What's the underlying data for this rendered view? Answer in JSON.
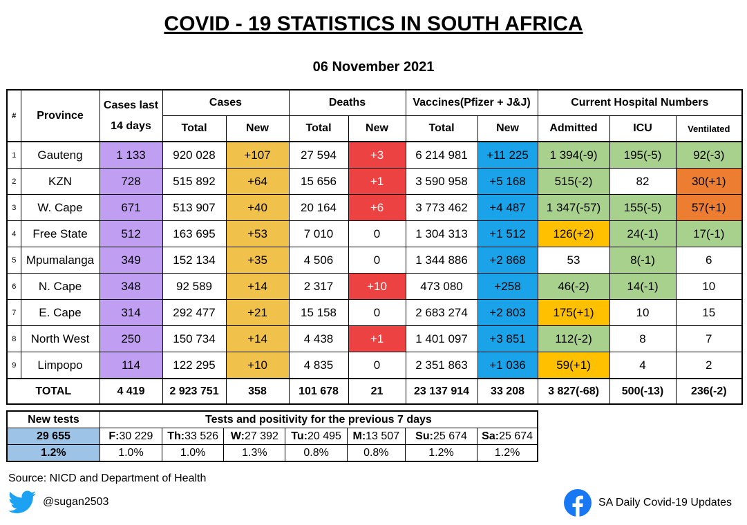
{
  "title": "COVID - 19 STATISTICS IN SOUTH AFRICA",
  "date": "06 November 2021",
  "headers": {
    "num": "#",
    "province": "Province",
    "cases14_line1": "Cases last",
    "cases14_line2": "14 days",
    "cases": "Cases",
    "deaths": "Deaths",
    "vaccines": "Vaccines(Pfizer + J&J)",
    "hospital": "Current Hospital Numbers",
    "total": "Total",
    "new": "New",
    "admitted": "Admitted",
    "icu": "ICU",
    "ventilated": "Ventilated"
  },
  "rows": [
    {
      "n": "1",
      "province": "Gauteng",
      "cases14": "1 133",
      "cases_total": "920 028",
      "cases_new": "+107",
      "deaths_total": "27 594",
      "deaths_new": "+3",
      "vacc_total": "6 214 981",
      "vacc_new": "+11 225",
      "admitted": "1 394(-9)",
      "icu": "195(-5)",
      "ventilated": "92(-3)"
    },
    {
      "n": "2",
      "province": "KZN",
      "cases14": "728",
      "cases_total": "515 892",
      "cases_new": "+64",
      "deaths_total": "15 656",
      "deaths_new": "+1",
      "vacc_total": "3 590 958",
      "vacc_new": "+5 168",
      "admitted": "515(-2)",
      "icu": "82",
      "ventilated": "30(+1)"
    },
    {
      "n": "3",
      "province": "W. Cape",
      "cases14": "671",
      "cases_total": "513 907",
      "cases_new": "+40",
      "deaths_total": "20 164",
      "deaths_new": "+6",
      "vacc_total": "3 773 462",
      "vacc_new": "+4 487",
      "admitted": "1 347(-57)",
      "icu": "155(-5)",
      "ventilated": "57(+1)"
    },
    {
      "n": "4",
      "province": "Free State",
      "cases14": "512",
      "cases_total": "163 695",
      "cases_new": "+53",
      "deaths_total": "7 010",
      "deaths_new": "0",
      "vacc_total": "1 304 313",
      "vacc_new": "+1 512",
      "admitted": "126(+2)",
      "icu": "24(-1)",
      "ventilated": "17(-1)"
    },
    {
      "n": "5",
      "province": "Mpumalanga",
      "cases14": "349",
      "cases_total": "152 134",
      "cases_new": "+35",
      "deaths_total": "4 506",
      "deaths_new": "0",
      "vacc_total": "1 344 886",
      "vacc_new": "+2 868",
      "admitted": "53",
      "icu": "8(-1)",
      "ventilated": "6"
    },
    {
      "n": "6",
      "province": "N. Cape",
      "cases14": "348",
      "cases_total": "92 589",
      "cases_new": "+14",
      "deaths_total": "2 317",
      "deaths_new": "+10",
      "vacc_total": "473 080",
      "vacc_new": "+258",
      "admitted": "46(-2)",
      "icu": "14(-1)",
      "ventilated": "10"
    },
    {
      "n": "7",
      "province": "E. Cape",
      "cases14": "314",
      "cases_total": "292 477",
      "cases_new": "+21",
      "deaths_total": "15 158",
      "deaths_new": "0",
      "vacc_total": "2 683 274",
      "vacc_new": "+2 803",
      "admitted": "175(+1)",
      "icu": "10",
      "ventilated": "15"
    },
    {
      "n": "8",
      "province": "North West",
      "cases14": "250",
      "cases_total": "150 734",
      "cases_new": "+14",
      "deaths_total": "4 438",
      "deaths_new": "+1",
      "vacc_total": "1 401 097",
      "vacc_new": "+3 851",
      "admitted": "112(-2)",
      "icu": "8",
      "ventilated": "7"
    },
    {
      "n": "9",
      "province": "Limpopo",
      "cases14": "114",
      "cases_total": "122 295",
      "cases_new": "+10",
      "deaths_total": "4 835",
      "deaths_new": "0",
      "vacc_total": "2 351 863",
      "vacc_new": "+1 036",
      "admitted": "59(+1)",
      "icu": "4",
      "ventilated": "2"
    }
  ],
  "totals": {
    "label": "TOTAL",
    "cases14": "4 419",
    "cases_total": "2 923 751",
    "cases_new": "358",
    "deaths_total": "101 678",
    "deaths_new": "21",
    "vacc_total": "23 137 914",
    "vacc_new": "33 208",
    "admitted": "3 827(-68)",
    "icu": "500(-13)",
    "ventilated": "236(-2)"
  },
  "tests": {
    "new_tests_label": "New tests",
    "positivity_label": "Tests and positivity for the previous 7 days",
    "new_tests": "29 655",
    "positivity": "1.2%",
    "days": [
      {
        "day": "F:",
        "count": "30 229",
        "pct": "1.0%"
      },
      {
        "day": "Th:",
        "count": "33 526",
        "pct": "1.0%"
      },
      {
        "day": "W:",
        "count": "27 392",
        "pct": "1.3%"
      },
      {
        "day": "Tu:",
        "count": "20 495",
        "pct": "0.8%"
      },
      {
        "day": "M:",
        "count": "13 507",
        "pct": "0.8%"
      },
      {
        "day": "Su:",
        "count": "25 674",
        "pct": "1.2%"
      },
      {
        "day": "Sa:",
        "count": "25 674",
        "pct": "1.2%"
      }
    ]
  },
  "source": "Source: NICD and Department of Health",
  "twitter_handle": "@sugan2503",
  "facebook_page": "SA Daily Covid-19 Updates",
  "colors": {
    "cases14": "#c09ff2",
    "cases_new": "#f0c14b",
    "deaths_new_positive": "#ec4242",
    "vacc_new": "#1aa3e8",
    "improving": "#a9d18e",
    "worsening": "#ed7d31",
    "admitted_up": "#ffc000",
    "tests_highlight": "#9dc3e6",
    "twitter": "#1da1f2",
    "facebook": "#1877f2"
  },
  "cell_status": [
    {
      "deaths_new": "red",
      "admitted": "green",
      "icu": "green",
      "ventilated": "green"
    },
    {
      "deaths_new": "red",
      "admitted": "green",
      "icu": "white",
      "ventilated": "orange"
    },
    {
      "deaths_new": "red",
      "admitted": "green",
      "icu": "green",
      "ventilated": "orange"
    },
    {
      "deaths_new": "white",
      "admitted": "gold",
      "icu": "green",
      "ventilated": "green"
    },
    {
      "deaths_new": "white",
      "admitted": "white",
      "icu": "green",
      "ventilated": "white"
    },
    {
      "deaths_new": "red",
      "admitted": "green",
      "icu": "green",
      "ventilated": "white"
    },
    {
      "deaths_new": "white",
      "admitted": "gold",
      "icu": "white",
      "ventilated": "white"
    },
    {
      "deaths_new": "red",
      "admitted": "green",
      "icu": "white",
      "ventilated": "white"
    },
    {
      "deaths_new": "white",
      "admitted": "gold",
      "icu": "white",
      "ventilated": "white"
    }
  ]
}
